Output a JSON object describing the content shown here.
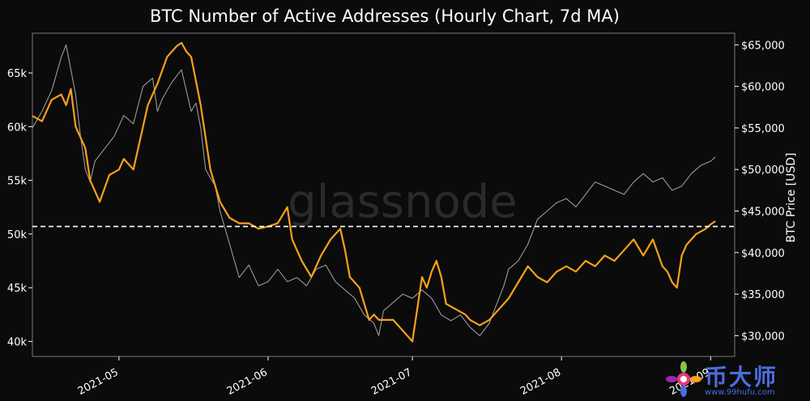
{
  "chart_data": {
    "type": "line",
    "title": "BTC Number of Active Addresses (Hourly Chart, 7d MA)",
    "xlabel": "",
    "ylabel_left": "",
    "ylabel_right": "BTC Price [USD]",
    "watermark": "glassnode",
    "x_ticks": [
      "2021-05",
      "2021-06",
      "2021-07",
      "2021-08",
      "2021-09"
    ],
    "x_tick_positions": [
      15,
      46,
      76,
      107,
      138
    ],
    "xlim": [
      -3,
      143
    ],
    "y_left_ticks": [
      {
        "value": 40000,
        "label": "40k"
      },
      {
        "value": 45000,
        "label": "45k"
      },
      {
        "value": 50000,
        "label": "50k"
      },
      {
        "value": 55000,
        "label": "55k"
      },
      {
        "value": 60000,
        "label": "60k"
      },
      {
        "value": 65000,
        "label": "65k"
      }
    ],
    "y_left_lim": [
      38600,
      68700
    ],
    "y_right_ticks": [
      {
        "value": 30000,
        "label": "$30,000"
      },
      {
        "value": 35000,
        "label": "$35,000"
      },
      {
        "value": 40000,
        "label": "$40,000"
      },
      {
        "value": 45000,
        "label": "$45,000"
      },
      {
        "value": 50000,
        "label": "$50,000"
      },
      {
        "value": 55000,
        "label": "$55,000"
      },
      {
        "value": 60000,
        "label": "$60,000"
      },
      {
        "value": 65000,
        "label": "$65,000"
      }
    ],
    "y_right_lim": [
      27500,
      66400
    ],
    "reference_line": {
      "value": 50700,
      "axis": "left",
      "style": "dashed",
      "color": "#ffffff"
    },
    "series": [
      {
        "name": "Active Addresses (7d MA)",
        "axis": "left",
        "color": "#f7a11a",
        "x": [
          -3,
          -1,
          1,
          3,
          4,
          5,
          6,
          8,
          9,
          11,
          13,
          15,
          16,
          17,
          18,
          20,
          21,
          23,
          25,
          27,
          28,
          29,
          30,
          32,
          34,
          36,
          38,
          40,
          42,
          44,
          46,
          48,
          50,
          51,
          52,
          53,
          55,
          57,
          59,
          61,
          62,
          63,
          65,
          67,
          68,
          69,
          70,
          72,
          74,
          76,
          77,
          78,
          79,
          80,
          81,
          82,
          83,
          85,
          87,
          88,
          90,
          92,
          94,
          96,
          98,
          100,
          102,
          104,
          106,
          108,
          110,
          112,
          114,
          116,
          118,
          120,
          122,
          124,
          126,
          128,
          129,
          130,
          131,
          132,
          133,
          135,
          137,
          138,
          139
        ],
        "values": [
          61000,
          60500,
          62500,
          63000,
          62000,
          63500,
          60000,
          58000,
          55000,
          53000,
          55500,
          56000,
          57000,
          56500,
          56000,
          60000,
          62000,
          64000,
          66500,
          67500,
          67800,
          67000,
          66500,
          62000,
          56000,
          53000,
          51500,
          51000,
          51000,
          50500,
          50700,
          51000,
          52500,
          49500,
          48500,
          47500,
          46000,
          48000,
          49500,
          50500,
          48500,
          46000,
          45000,
          42000,
          42500,
          42000,
          42000,
          42000,
          41000,
          40000,
          43000,
          46000,
          45000,
          46500,
          47500,
          46000,
          43500,
          43000,
          42500,
          42000,
          41500,
          42000,
          43000,
          44000,
          45500,
          47000,
          46000,
          45500,
          46500,
          47000,
          46500,
          47500,
          47000,
          48000,
          47500,
          48500,
          49500,
          48000,
          49500,
          47000,
          46500,
          45500,
          45000,
          48000,
          49000,
          50000,
          50500,
          50900,
          51200
        ]
      },
      {
        "name": "BTC Price [USD]",
        "axis": "right",
        "color": "#9a9a9a",
        "x": [
          -3,
          -1,
          1,
          3,
          4,
          5,
          6,
          7,
          8,
          9,
          10,
          12,
          14,
          16,
          18,
          20,
          22,
          23,
          24,
          26,
          28,
          30,
          31,
          32,
          33,
          34,
          35,
          36,
          38,
          40,
          42,
          44,
          46,
          48,
          50,
          52,
          54,
          56,
          58,
          60,
          62,
          64,
          66,
          68,
          69,
          70,
          72,
          74,
          76,
          78,
          80,
          82,
          84,
          86,
          88,
          90,
          92,
          94,
          95,
          96,
          98,
          100,
          102,
          104,
          106,
          108,
          110,
          112,
          114,
          116,
          118,
          120,
          122,
          124,
          126,
          128,
          130,
          132,
          134,
          136,
          138,
          139
        ],
        "values": [
          55000,
          57000,
          59500,
          63500,
          65000,
          62000,
          59000,
          54000,
          50000,
          48500,
          51000,
          52500,
          54000,
          56500,
          55500,
          60000,
          61000,
          57000,
          58500,
          60500,
          62000,
          57000,
          58000,
          55000,
          50000,
          49000,
          48000,
          45000,
          41000,
          37000,
          38500,
          36000,
          36500,
          38000,
          36500,
          37000,
          36000,
          38000,
          38500,
          36500,
          35500,
          34500,
          32500,
          31500,
          30000,
          33000,
          34000,
          35000,
          34500,
          35500,
          34500,
          32500,
          31800,
          32500,
          31000,
          30000,
          31500,
          34500,
          36000,
          38000,
          39000,
          41000,
          44000,
          45000,
          46000,
          46500,
          45500,
          47000,
          48500,
          48000,
          47500,
          47000,
          48500,
          49500,
          48500,
          49000,
          47500,
          48000,
          49500,
          50500,
          51000,
          51500
        ]
      }
    ]
  },
  "logo": {
    "brand": "币大师",
    "url": "www.99hufu.com"
  }
}
